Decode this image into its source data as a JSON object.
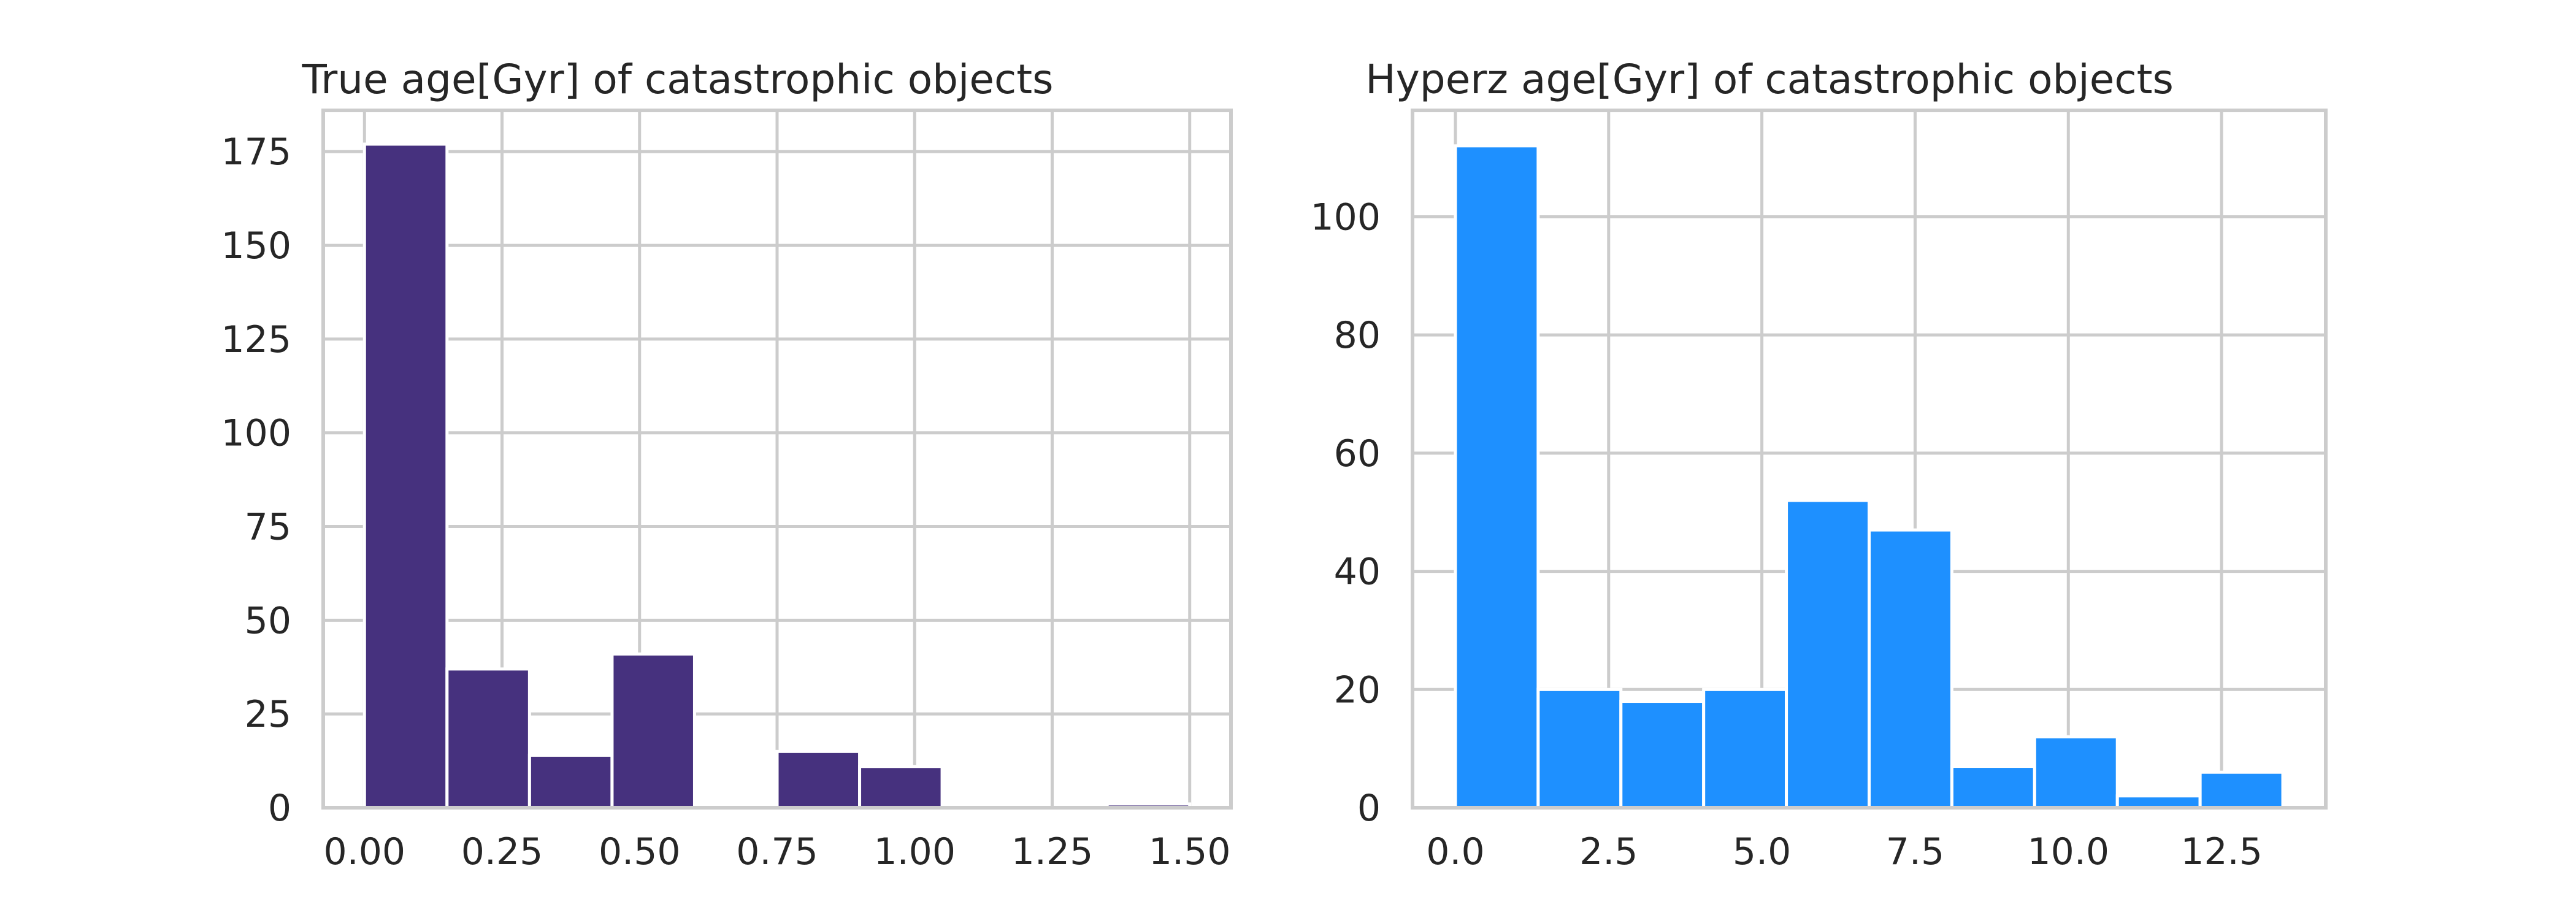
{
  "chart_data": [
    {
      "type": "bar",
      "title": "True age[Gyr] of catastrophic objects",
      "xlabel": "",
      "ylabel": "",
      "xlim": [
        -0.075,
        1.575
      ],
      "ylim": [
        0,
        186
      ],
      "xticks": [
        0.0,
        0.25,
        0.5,
        0.75,
        1.0,
        1.25,
        1.5
      ],
      "xtick_labels": [
        "0.00",
        "0.25",
        "0.50",
        "0.75",
        "1.00",
        "1.25",
        "1.50"
      ],
      "yticks": [
        0,
        25,
        50,
        75,
        100,
        125,
        150,
        175
      ],
      "ytick_labels": [
        "0",
        "25",
        "50",
        "75",
        "100",
        "125",
        "150",
        "175"
      ],
      "bin_edges": [
        0.0,
        0.15,
        0.3,
        0.45,
        0.6,
        0.75,
        0.9,
        1.05,
        1.2,
        1.35,
        1.5
      ],
      "values": [
        177,
        37,
        14,
        41,
        0,
        15,
        11,
        0,
        0,
        1
      ],
      "color": "#46317e",
      "grid": true
    },
    {
      "type": "bar",
      "title": "Hyperz age[Gyr] of catastrophic objects",
      "xlabel": "",
      "ylabel": "",
      "xlim": [
        -0.7,
        14.2
      ],
      "ylim": [
        0,
        118
      ],
      "xticks": [
        0.0,
        2.5,
        5.0,
        7.5,
        10.0,
        12.5
      ],
      "xtick_labels": [
        "0.0",
        "2.5",
        "5.0",
        "7.5",
        "10.0",
        "12.5"
      ],
      "yticks": [
        0,
        20,
        40,
        60,
        80,
        100
      ],
      "ytick_labels": [
        "0",
        "20",
        "40",
        "60",
        "80",
        "100"
      ],
      "bin_edges": [
        0.0,
        1.35,
        2.7,
        4.05,
        5.4,
        6.75,
        8.1,
        9.45,
        10.8,
        12.15,
        13.5
      ],
      "values": [
        112,
        20,
        18,
        20,
        52,
        47,
        7,
        12,
        2,
        6
      ],
      "color": "#1e90ff",
      "grid": true
    }
  ]
}
